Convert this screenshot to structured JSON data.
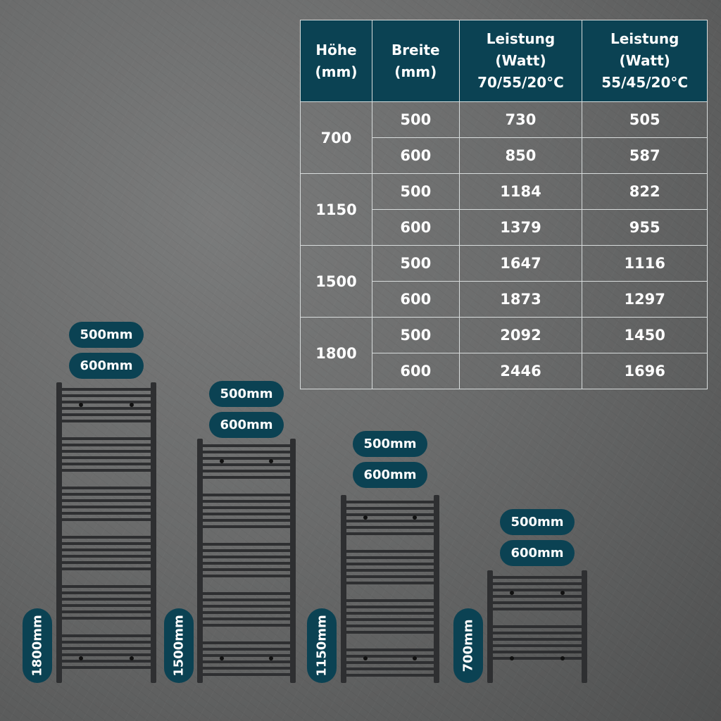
{
  "table": {
    "headers": [
      "Höhe\n(mm)",
      "Breite\n(mm)",
      "Leistung\n(Watt)\n70/55/20°C",
      "Leistung\n(Watt)\n55/45/20°C"
    ],
    "groups": [
      {
        "height": "700",
        "rows": [
          [
            "500",
            "730",
            "505"
          ],
          [
            "600",
            "850",
            "587"
          ]
        ]
      },
      {
        "height": "1150",
        "rows": [
          [
            "500",
            "1184",
            "822"
          ],
          [
            "600",
            "1379",
            "955"
          ]
        ]
      },
      {
        "height": "1500",
        "rows": [
          [
            "500",
            "1647",
            "1116"
          ],
          [
            "600",
            "1873",
            "1297"
          ]
        ]
      },
      {
        "height": "1800",
        "rows": [
          [
            "500",
            "2092",
            "1450"
          ],
          [
            "600",
            "2446",
            "1696"
          ]
        ]
      }
    ]
  },
  "radiators": [
    {
      "height_label": "1800mm",
      "widths": [
        "500mm",
        "600mm"
      ]
    },
    {
      "height_label": "1500mm",
      "widths": [
        "500mm",
        "600mm"
      ]
    },
    {
      "height_label": "1150mm",
      "widths": [
        "500mm",
        "600mm"
      ]
    },
    {
      "height_label": "700mm",
      "widths": [
        "500mm",
        "600mm"
      ]
    }
  ],
  "colors": {
    "accent": "#0b4253",
    "radiator": "#2e2f31"
  }
}
